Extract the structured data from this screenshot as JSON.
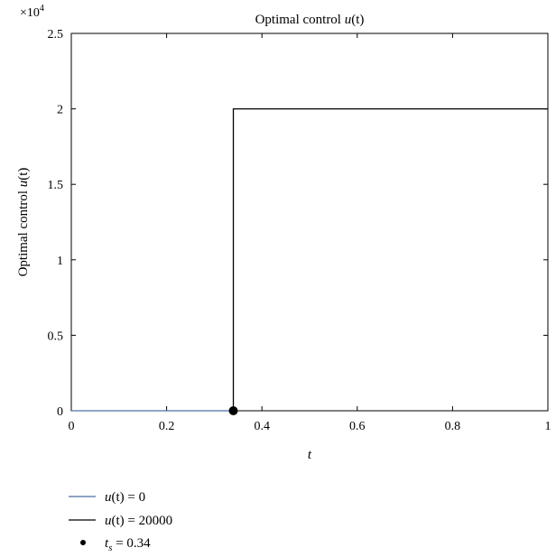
{
  "chart_data": {
    "type": "line",
    "title": {
      "prefix": "Optimal control ",
      "fn": "u",
      "arg": "(t)"
    },
    "xlabel": "t",
    "ylabel": {
      "prefix": "Optimal control ",
      "fn": "u",
      "arg": "(t)"
    },
    "xlim": [
      0,
      1
    ],
    "ylim": [
      0,
      25000
    ],
    "xticks": [
      0,
      0.2,
      0.4,
      0.6,
      0.8,
      1
    ],
    "xtick_labels": [
      "0",
      "0.2",
      "0.4",
      "0.6",
      "0.8",
      "1"
    ],
    "yticks": [
      0,
      5000,
      10000,
      15000,
      20000,
      25000
    ],
    "ytick_labels": [
      "0",
      "0.5",
      "1",
      "1.5",
      "2",
      "2.5"
    ],
    "y_multiplier": {
      "base": "×10",
      "exp": "4"
    },
    "grid": false,
    "legend_position": "below",
    "series": [
      {
        "name": {
          "fn": "u",
          "arg": "(t)",
          "rest": " = 0"
        },
        "color": "#4a6fa5",
        "points": [
          [
            0,
            0
          ],
          [
            0.34,
            0
          ]
        ]
      },
      {
        "name": {
          "fn": "u",
          "arg": "(t)",
          "rest": " = 20000"
        },
        "color": "#000000",
        "points": [
          [
            0.34,
            0
          ],
          [
            0.34,
            20000
          ],
          [
            1,
            20000
          ]
        ]
      }
    ],
    "markers": [
      {
        "name": {
          "fn": "t",
          "sub": "s",
          "rest": " = 0.34"
        },
        "color": "#000000",
        "x": 0.34,
        "y": 0
      }
    ]
  }
}
